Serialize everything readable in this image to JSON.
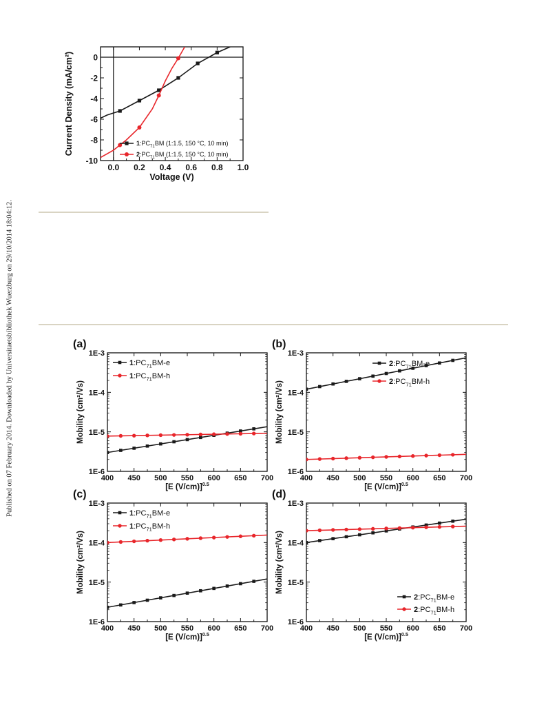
{
  "side_note": "Published on 07 February 2014. Downloaded by Universitaetsbibliothek Wuerzburg on 29/10/2014 18:04:12.",
  "colors": {
    "black": "#1a1a1a",
    "red": "#e8262b",
    "separator": "#d9d4c3"
  },
  "chart_data": [
    {
      "id": "jv",
      "type": "line",
      "xlabel": "Voltage (V)",
      "ylabel": "Current Density (mA/cm²)",
      "xlim": [
        -0.1,
        1.0
      ],
      "ylim": [
        -10,
        1
      ],
      "xticks": [
        0.0,
        0.2,
        0.4,
        0.6,
        0.8,
        1.0
      ],
      "xtick_labels": [
        "0.0",
        "0.2",
        "0.4",
        "0.6",
        "0.8",
        "1.0"
      ],
      "yticks": [
        0,
        -2,
        -4,
        -6,
        -8,
        -10
      ],
      "ytick_labels": [
        "0",
        "-2",
        "-4",
        "-6",
        "-8",
        "-10"
      ],
      "grid": false,
      "legend_position": "bottom-right",
      "series": [
        {
          "name": "1:PC71BM (1:1.5, 150 °C, 10 min)",
          "label_parts": [
            "1",
            ":PC",
            "71",
            "BM (1:1.5, 150 °C, 10 min)"
          ],
          "color": "black",
          "marker": "square",
          "x": [
            -0.1,
            -0.05,
            0.05,
            0.2,
            0.35,
            0.5,
            0.65,
            0.8,
            0.9
          ],
          "y": [
            -5.9,
            -5.6,
            -5.2,
            -4.2,
            -3.2,
            -2.0,
            -0.6,
            0.45,
            1.0
          ],
          "marker_x": [
            0.05,
            0.2,
            0.35,
            0.5,
            0.65,
            0.8
          ]
        },
        {
          "name": "2:PC71BM (1:1.5, 150 °C, 10 min)",
          "label_parts": [
            "2",
            ":PC",
            "71",
            "BM (1:1.5, 150 °C, 10 min)"
          ],
          "color": "red",
          "marker": "circle",
          "x": [
            -0.1,
            0.0,
            0.05,
            0.1,
            0.2,
            0.3,
            0.35,
            0.4,
            0.45,
            0.5,
            0.55
          ],
          "y": [
            -9.7,
            -9.0,
            -8.5,
            -8.0,
            -6.8,
            -5.0,
            -3.7,
            -2.3,
            -1.1,
            -0.1,
            1.0
          ],
          "marker_x": [
            0.05,
            0.2,
            0.35,
            0.5
          ]
        }
      ]
    },
    {
      "id": "a",
      "panel_label": "(a)",
      "type": "line",
      "xlabel": "[E (V/cm)]",
      "xlabel_sup": "0.5",
      "ylabel": "Mobility (cm²/Vs)",
      "xlim": [
        400,
        700
      ],
      "ylim": [
        1e-06,
        0.001
      ],
      "yscale": "log",
      "xticks": [
        400,
        450,
        500,
        550,
        600,
        650,
        700
      ],
      "xtick_labels": [
        "400",
        "450",
        "500",
        "550",
        "600",
        "650",
        "700"
      ],
      "ytick_labels": [
        "1E-6",
        "1E-5",
        "1E-4",
        "1E-3"
      ],
      "legend_position": "top-left",
      "series": [
        {
          "name": "1:PC71BM-e",
          "label_parts": [
            "1",
            ":PC",
            "71",
            "BM-e"
          ],
          "color": "black",
          "marker": "square",
          "x_start": 400,
          "x_end": 700,
          "y_start": 3e-06,
          "y_end": 1.35e-05
        },
        {
          "name": "1:PC71BM-h",
          "label_parts": [
            "1",
            ":PC",
            "71",
            "BM-h"
          ],
          "color": "red",
          "marker": "circle",
          "x_start": 400,
          "x_end": 700,
          "y_start": 7.8e-06,
          "y_end": 9.2e-06
        }
      ]
    },
    {
      "id": "b",
      "panel_label": "(b)",
      "type": "line",
      "xlabel": "[E (V/cm)]",
      "xlabel_sup": "0.5",
      "ylabel": "Mobility (cm²/Vs)",
      "xlim": [
        400,
        700
      ],
      "ylim": [
        1e-06,
        0.001
      ],
      "yscale": "log",
      "xticks": [
        400,
        450,
        500,
        550,
        600,
        650,
        700
      ],
      "xtick_labels": [
        "400",
        "450",
        "500",
        "550",
        "600",
        "650",
        "700"
      ],
      "ytick_labels": [
        "1E-6",
        "1E-5",
        "1E-4",
        "1E-3"
      ],
      "legend_position": "top-right",
      "series": [
        {
          "name": "2:PC71BM-e",
          "label_parts": [
            "2",
            ":PC",
            "71",
            "BM-e"
          ],
          "color": "black",
          "marker": "square",
          "x_start": 400,
          "x_end": 700,
          "y_start": 0.00012,
          "y_end": 0.00075
        },
        {
          "name": "2:PC71BM-h",
          "label_parts": [
            "2",
            ":PC",
            "71",
            "BM-h"
          ],
          "color": "red",
          "marker": "circle",
          "x_start": 400,
          "x_end": 700,
          "y_start": 2e-06,
          "y_end": 2.7e-06
        }
      ]
    },
    {
      "id": "c",
      "panel_label": "(c)",
      "type": "line",
      "xlabel": "[E (V/cm)]",
      "xlabel_sup": "0.5",
      "ylabel": "Mobility (cm²/Vs)",
      "xlim": [
        400,
        700
      ],
      "ylim": [
        1e-06,
        0.001
      ],
      "yscale": "log",
      "xticks": [
        400,
        450,
        500,
        550,
        600,
        650,
        700
      ],
      "xtick_labels": [
        "400",
        "450",
        "500",
        "550",
        "600",
        "650",
        "700"
      ],
      "ytick_labels": [
        "1E-6",
        "1E-5",
        "1E-4",
        "1E-3"
      ],
      "legend_position": "top-left",
      "series": [
        {
          "name": "1:PC71BM-e",
          "label_parts": [
            "1",
            ":PC",
            "71",
            "BM-e"
          ],
          "color": "black",
          "marker": "square",
          "x_start": 400,
          "x_end": 700,
          "y_start": 2.3e-06,
          "y_end": 1.2e-05
        },
        {
          "name": "1:PC71BM-h",
          "label_parts": [
            "1",
            ":PC",
            "71",
            "BM-h"
          ],
          "color": "red",
          "marker": "circle",
          "x_start": 400,
          "x_end": 700,
          "y_start": 0.0001,
          "y_end": 0.000155
        }
      ]
    },
    {
      "id": "d",
      "panel_label": "(d)",
      "type": "line",
      "xlabel": "[E (V/cm)]",
      "xlabel_sup": "0.5",
      "ylabel": "Mobility (cm²/Vs)",
      "xlim": [
        400,
        700
      ],
      "ylim": [
        1e-06,
        0.001
      ],
      "yscale": "log",
      "xticks": [
        400,
        450,
        500,
        550,
        600,
        650,
        700
      ],
      "xtick_labels": [
        "400",
        "450",
        "500",
        "550",
        "600",
        "650",
        "700"
      ],
      "ytick_labels": [
        "1E-6",
        "1E-5",
        "1E-4",
        "1E-3"
      ],
      "legend_position": "bottom-right",
      "series": [
        {
          "name": "2:PC71BM-e",
          "label_parts": [
            "2",
            ":PC",
            "71",
            "BM-e"
          ],
          "color": "black",
          "marker": "square",
          "x_start": 400,
          "x_end": 700,
          "y_start": 0.0001,
          "y_end": 0.00039
        },
        {
          "name": "2:PC71BM-h",
          "label_parts": [
            "2",
            ":PC",
            "71",
            "BM-h"
          ],
          "color": "red",
          "marker": "circle",
          "x_start": 400,
          "x_end": 700,
          "y_start": 0.0002,
          "y_end": 0.00026
        }
      ]
    }
  ]
}
